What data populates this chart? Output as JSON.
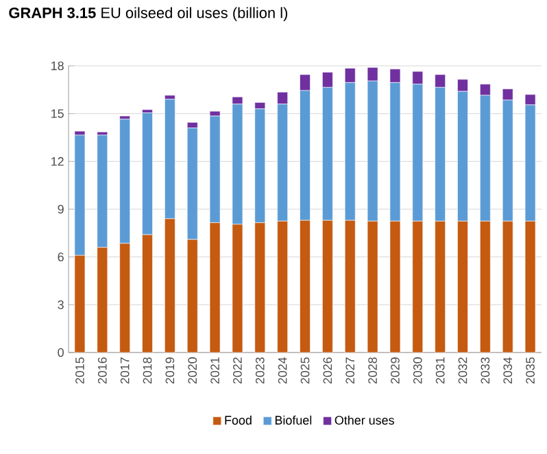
{
  "chart_data": {
    "type": "bar",
    "stacked": true,
    "title": "**GRAPH 3.15** EU oilseed oil uses (billion l)",
    "categories": [
      "2015",
      "2016",
      "2017",
      "2018",
      "2019",
      "2020",
      "2021",
      "2022",
      "2023",
      "2024",
      "2025",
      "2026",
      "2027",
      "2028",
      "2029",
      "2030",
      "2031",
      "2032",
      "2033",
      "2034",
      "2035"
    ],
    "series": [
      {
        "name": "Food",
        "color": "#c55a11",
        "values": [
          6.1,
          6.6,
          6.85,
          7.4,
          8.4,
          7.1,
          8.15,
          8.05,
          8.15,
          8.25,
          8.3,
          8.3,
          8.3,
          8.25,
          8.25,
          8.25,
          8.25,
          8.25,
          8.25,
          8.25,
          8.25
        ]
      },
      {
        "name": "Biofuel",
        "color": "#5b9bd5",
        "values": [
          7.55,
          7.05,
          7.8,
          7.65,
          7.5,
          7.0,
          6.7,
          7.55,
          7.15,
          7.35,
          8.15,
          8.35,
          8.65,
          8.8,
          8.7,
          8.6,
          8.4,
          8.15,
          7.9,
          7.6,
          7.3
        ]
      },
      {
        "name": "Other uses",
        "color": "#7030a0",
        "values": [
          0.25,
          0.2,
          0.2,
          0.2,
          0.25,
          0.35,
          0.3,
          0.45,
          0.4,
          0.75,
          1.0,
          0.95,
          0.9,
          0.85,
          0.85,
          0.8,
          0.8,
          0.75,
          0.7,
          0.7,
          0.65
        ]
      }
    ],
    "ylim": [
      0,
      18
    ],
    "yticks": [
      0,
      3,
      6,
      9,
      12,
      15,
      18
    ],
    "grid": "y",
    "legend": "bottom"
  }
}
